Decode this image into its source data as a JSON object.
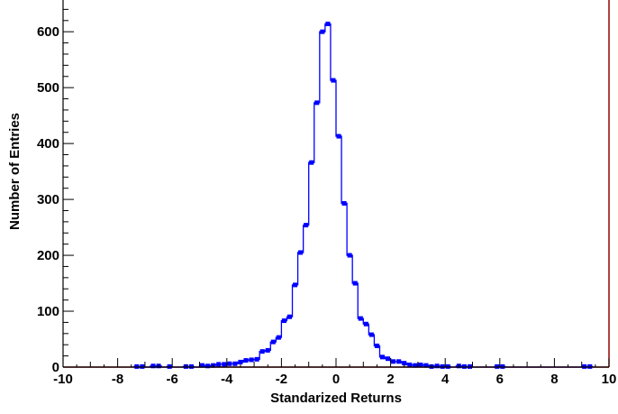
{
  "chart_data": {
    "type": "histogram",
    "title": "",
    "xlabel": "Standarized Returns",
    "ylabel": "Number of Entries",
    "xlim": [
      -10,
      10
    ],
    "ylim": [
      0,
      660
    ],
    "bin_width": 0.2,
    "x_ticks": [
      "-10",
      "-8",
      "-6",
      "-4",
      "-2",
      "0",
      "2",
      "4",
      "6",
      "8",
      "10"
    ],
    "y_ticks": [
      "0",
      "100",
      "200",
      "300",
      "400",
      "500",
      "600"
    ],
    "bin_centers": [
      -7.3,
      -7.1,
      -6.9,
      -6.7,
      -6.5,
      -6.3,
      -6.1,
      -5.9,
      -5.7,
      -5.5,
      -5.3,
      -5.1,
      -4.9,
      -4.7,
      -4.5,
      -4.3,
      -4.1,
      -3.9,
      -3.7,
      -3.5,
      -3.3,
      -3.1,
      -2.9,
      -2.7,
      -2.5,
      -2.3,
      -2.1,
      -1.9,
      -1.7,
      -1.5,
      -1.3,
      -1.1,
      -0.9,
      -0.7,
      -0.5,
      -0.3,
      -0.1,
      0.1,
      0.3,
      0.5,
      0.7,
      0.9,
      1.1,
      1.3,
      1.5,
      1.7,
      1.9,
      2.1,
      2.3,
      2.5,
      2.7,
      2.9,
      3.1,
      3.3,
      3.5,
      3.7,
      3.9,
      4.1,
      4.3,
      4.5,
      4.7,
      4.9,
      5.1,
      5.3,
      5.5,
      5.7,
      5.9,
      6.1,
      6.3,
      6.5,
      6.7,
      6.9,
      7.1,
      7.3,
      7.5,
      7.7,
      7.9,
      8.1,
      8.3,
      8.5,
      8.7,
      8.9,
      9.1,
      9.3
    ],
    "counts": [
      1,
      1,
      0,
      2,
      2,
      0,
      1,
      0,
      0,
      1,
      1,
      0,
      3,
      2,
      3,
      5,
      5,
      6,
      6,
      9,
      12,
      13,
      14,
      28,
      30,
      45,
      53,
      83,
      90,
      147,
      205,
      254,
      366,
      473,
      600,
      614,
      513,
      413,
      293,
      200,
      150,
      87,
      77,
      58,
      38,
      18,
      15,
      10,
      10,
      7,
      4,
      3,
      4,
      3,
      1,
      2,
      1,
      1,
      0,
      2,
      1,
      1,
      0,
      0,
      0,
      0,
      1,
      1,
      0,
      0,
      0,
      0,
      0,
      0,
      0,
      0,
      0,
      0,
      0,
      0,
      0,
      0,
      1,
      1
    ],
    "marker_color": "#0000ff",
    "line_color": "#0000ff",
    "frame_right_color": "#990000",
    "grid": false,
    "legend": "none"
  }
}
